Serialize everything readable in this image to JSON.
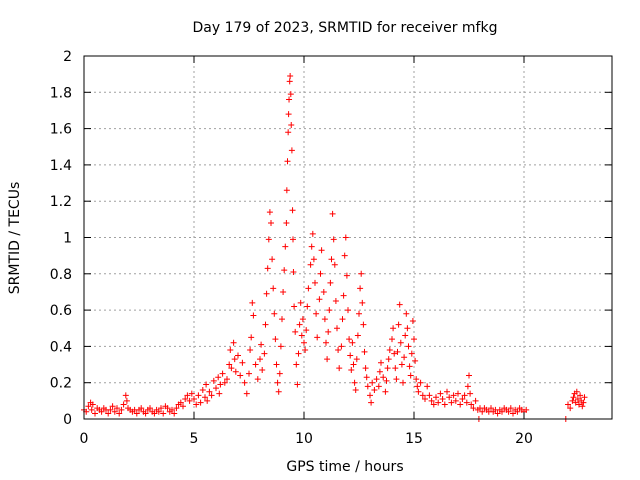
{
  "chart_data": {
    "type": "scatter",
    "title": "Day 179 of 2023, SRMTID for receiver mfkg",
    "xlabel": "GPS time / hours",
    "ylabel": "SRMTID / TECUs",
    "xlim": [
      0,
      24
    ],
    "ylim": [
      0,
      2
    ],
    "xticks": [
      0,
      5,
      10,
      15,
      20
    ],
    "xtick_labels": [
      "0",
      "5",
      "10",
      "15",
      "20"
    ],
    "yticks": [
      0,
      0.2,
      0.4,
      0.6,
      0.8,
      1,
      1.2,
      1.4,
      1.6,
      1.8,
      2
    ],
    "ytick_labels": [
      "0",
      "0.2",
      "0.4",
      "0.6",
      "0.8",
      "1",
      "1.2",
      "1.4",
      "1.6",
      "1.8",
      "2"
    ],
    "grid": true,
    "marker": "+",
    "series": [
      {
        "name": "SRMTID",
        "color": "#ff0000",
        "points": [
          [
            0.0,
            0.05
          ],
          [
            0.1,
            0.04
          ],
          [
            0.2,
            0.07
          ],
          [
            0.3,
            0.09
          ],
          [
            0.35,
            0.05
          ],
          [
            0.4,
            0.08
          ],
          [
            0.5,
            0.03
          ],
          [
            0.6,
            0.06
          ],
          [
            0.7,
            0.05
          ],
          [
            0.8,
            0.04
          ],
          [
            0.9,
            0.06
          ],
          [
            1.0,
            0.05
          ],
          [
            1.1,
            0.03
          ],
          [
            1.2,
            0.05
          ],
          [
            1.3,
            0.07
          ],
          [
            1.4,
            0.04
          ],
          [
            1.5,
            0.06
          ],
          [
            1.6,
            0.03
          ],
          [
            1.7,
            0.05
          ],
          [
            1.8,
            0.08
          ],
          [
            1.9,
            0.13
          ],
          [
            1.95,
            0.1
          ],
          [
            2.0,
            0.06
          ],
          [
            2.1,
            0.05
          ],
          [
            2.2,
            0.04
          ],
          [
            2.3,
            0.05
          ],
          [
            2.4,
            0.03
          ],
          [
            2.5,
            0.05
          ],
          [
            2.6,
            0.06
          ],
          [
            2.7,
            0.04
          ],
          [
            2.8,
            0.03
          ],
          [
            2.9,
            0.05
          ],
          [
            3.0,
            0.06
          ],
          [
            3.1,
            0.04
          ],
          [
            3.2,
            0.03
          ],
          [
            3.3,
            0.05
          ],
          [
            3.4,
            0.04
          ],
          [
            3.5,
            0.06
          ],
          [
            3.6,
            0.03
          ],
          [
            3.7,
            0.07
          ],
          [
            3.8,
            0.06
          ],
          [
            3.9,
            0.04
          ],
          [
            4.0,
            0.05
          ],
          [
            4.1,
            0.03
          ],
          [
            4.2,
            0.06
          ],
          [
            4.3,
            0.08
          ],
          [
            4.4,
            0.09
          ],
          [
            4.5,
            0.07
          ],
          [
            4.6,
            0.11
          ],
          [
            4.7,
            0.13
          ],
          [
            4.8,
            0.1
          ],
          [
            4.9,
            0.14
          ],
          [
            5.0,
            0.11
          ],
          [
            5.1,
            0.08
          ],
          [
            5.2,
            0.13
          ],
          [
            5.3,
            0.09
          ],
          [
            5.4,
            0.16
          ],
          [
            5.5,
            0.12
          ],
          [
            5.55,
            0.19
          ],
          [
            5.6,
            0.1
          ],
          [
            5.7,
            0.15
          ],
          [
            5.8,
            0.13
          ],
          [
            5.9,
            0.21
          ],
          [
            6.0,
            0.17
          ],
          [
            6.1,
            0.23
          ],
          [
            6.15,
            0.14
          ],
          [
            6.2,
            0.19
          ],
          [
            6.3,
            0.25
          ],
          [
            6.4,
            0.2
          ],
          [
            6.5,
            0.22
          ],
          [
            6.6,
            0.3
          ],
          [
            6.65,
            0.38
          ],
          [
            6.7,
            0.28
          ],
          [
            6.8,
            0.42
          ],
          [
            6.85,
            0.33
          ],
          [
            6.9,
            0.26
          ],
          [
            7.0,
            0.35
          ],
          [
            7.1,
            0.24
          ],
          [
            7.2,
            0.31
          ],
          [
            7.3,
            0.2
          ],
          [
            7.4,
            0.14
          ],
          [
            7.5,
            0.25
          ],
          [
            7.55,
            0.38
          ],
          [
            7.6,
            0.45
          ],
          [
            7.65,
            0.64
          ],
          [
            7.7,
            0.57
          ],
          [
            7.8,
            0.3
          ],
          [
            7.9,
            0.22
          ],
          [
            8.0,
            0.33
          ],
          [
            8.05,
            0.41
          ],
          [
            8.1,
            0.27
          ],
          [
            8.2,
            0.36
          ],
          [
            8.25,
            0.52
          ],
          [
            8.3,
            0.69
          ],
          [
            8.35,
            0.83
          ],
          [
            8.4,
            0.99
          ],
          [
            8.45,
            1.14
          ],
          [
            8.5,
            1.08
          ],
          [
            8.55,
            0.88
          ],
          [
            8.6,
            0.72
          ],
          [
            8.65,
            0.58
          ],
          [
            8.7,
            0.44
          ],
          [
            8.75,
            0.3
          ],
          [
            8.8,
            0.2
          ],
          [
            8.85,
            0.15
          ],
          [
            8.9,
            0.25
          ],
          [
            8.95,
            0.4
          ],
          [
            9.0,
            0.55
          ],
          [
            9.05,
            0.7
          ],
          [
            9.1,
            0.82
          ],
          [
            9.15,
            0.95
          ],
          [
            9.2,
            1.08
          ],
          [
            9.22,
            1.26
          ],
          [
            9.25,
            1.42
          ],
          [
            9.28,
            1.58
          ],
          [
            9.3,
            1.68
          ],
          [
            9.32,
            1.76
          ],
          [
            9.35,
            1.86
          ],
          [
            9.37,
            1.89
          ],
          [
            9.4,
            1.79
          ],
          [
            9.42,
            1.62
          ],
          [
            9.45,
            1.48
          ],
          [
            9.48,
            1.15
          ],
          [
            9.5,
            0.99
          ],
          [
            9.52,
            0.81
          ],
          [
            9.55,
            0.62
          ],
          [
            9.6,
            0.48
          ],
          [
            9.65,
            0.3
          ],
          [
            9.7,
            0.19
          ],
          [
            9.75,
            0.36
          ],
          [
            9.8,
            0.52
          ],
          [
            9.85,
            0.64
          ],
          [
            9.9,
            0.46
          ],
          [
            9.95,
            0.55
          ],
          [
            10.0,
            0.42
          ],
          [
            10.05,
            0.38
          ],
          [
            10.1,
            0.49
          ],
          [
            10.15,
            0.62
          ],
          [
            10.2,
            0.72
          ],
          [
            10.3,
            0.85
          ],
          [
            10.35,
            0.95
          ],
          [
            10.4,
            1.02
          ],
          [
            10.45,
            0.88
          ],
          [
            10.5,
            0.75
          ],
          [
            10.55,
            0.58
          ],
          [
            10.6,
            0.45
          ],
          [
            10.7,
            0.66
          ],
          [
            10.75,
            0.8
          ],
          [
            10.8,
            0.93
          ],
          [
            10.9,
            0.7
          ],
          [
            10.95,
            0.55
          ],
          [
            11.0,
            0.42
          ],
          [
            11.05,
            0.33
          ],
          [
            11.1,
            0.48
          ],
          [
            11.15,
            0.6
          ],
          [
            11.2,
            0.75
          ],
          [
            11.25,
            0.88
          ],
          [
            11.3,
            1.13
          ],
          [
            11.35,
            0.99
          ],
          [
            11.4,
            0.85
          ],
          [
            11.45,
            0.65
          ],
          [
            11.5,
            0.5
          ],
          [
            11.55,
            0.38
          ],
          [
            11.6,
            0.28
          ],
          [
            11.7,
            0.4
          ],
          [
            11.75,
            0.55
          ],
          [
            11.8,
            0.68
          ],
          [
            11.85,
            0.9
          ],
          [
            11.9,
            1.0
          ],
          [
            11.95,
            0.79
          ],
          [
            12.0,
            0.6
          ],
          [
            12.05,
            0.44
          ],
          [
            12.1,
            0.35
          ],
          [
            12.15,
            0.27
          ],
          [
            12.2,
            0.42
          ],
          [
            12.25,
            0.3
          ],
          [
            12.3,
            0.2
          ],
          [
            12.35,
            0.16
          ],
          [
            12.4,
            0.33
          ],
          [
            12.45,
            0.46
          ],
          [
            12.5,
            0.58
          ],
          [
            12.55,
            0.72
          ],
          [
            12.6,
            0.8
          ],
          [
            12.65,
            0.64
          ],
          [
            12.7,
            0.52
          ],
          [
            12.75,
            0.37
          ],
          [
            12.8,
            0.28
          ],
          [
            12.85,
            0.23
          ],
          [
            12.9,
            0.18
          ],
          [
            13.0,
            0.13
          ],
          [
            13.05,
            0.09
          ],
          [
            13.1,
            0.2
          ],
          [
            13.2,
            0.16
          ],
          [
            13.3,
            0.22
          ],
          [
            13.4,
            0.18
          ],
          [
            13.45,
            0.26
          ],
          [
            13.5,
            0.31
          ],
          [
            13.6,
            0.23
          ],
          [
            13.7,
            0.15
          ],
          [
            13.75,
            0.21
          ],
          [
            13.8,
            0.28
          ],
          [
            13.85,
            0.33
          ],
          [
            13.9,
            0.38
          ],
          [
            14.0,
            0.44
          ],
          [
            14.05,
            0.5
          ],
          [
            14.1,
            0.36
          ],
          [
            14.15,
            0.28
          ],
          [
            14.2,
            0.22
          ],
          [
            14.25,
            0.37
          ],
          [
            14.3,
            0.52
          ],
          [
            14.35,
            0.63
          ],
          [
            14.4,
            0.42
          ],
          [
            14.45,
            0.3
          ],
          [
            14.5,
            0.2
          ],
          [
            14.55,
            0.34
          ],
          [
            14.6,
            0.46
          ],
          [
            14.65,
            0.58
          ],
          [
            14.7,
            0.5
          ],
          [
            14.75,
            0.4
          ],
          [
            14.8,
            0.29
          ],
          [
            14.85,
            0.24
          ],
          [
            14.9,
            0.36
          ],
          [
            14.95,
            0.54
          ],
          [
            15.0,
            0.44
          ],
          [
            15.05,
            0.32
          ],
          [
            15.1,
            0.22
          ],
          [
            15.15,
            0.18
          ],
          [
            15.2,
            0.15
          ],
          [
            15.3,
            0.2
          ],
          [
            15.4,
            0.13
          ],
          [
            15.5,
            0.11
          ],
          [
            15.6,
            0.18
          ],
          [
            15.7,
            0.13
          ],
          [
            15.8,
            0.1
          ],
          [
            15.9,
            0.08
          ],
          [
            16.0,
            0.12
          ],
          [
            16.1,
            0.09
          ],
          [
            16.2,
            0.14
          ],
          [
            16.3,
            0.11
          ],
          [
            16.4,
            0.08
          ],
          [
            16.5,
            0.15
          ],
          [
            16.6,
            0.12
          ],
          [
            16.7,
            0.09
          ],
          [
            16.8,
            0.13
          ],
          [
            16.9,
            0.1
          ],
          [
            17.0,
            0.14
          ],
          [
            17.1,
            0.08
          ],
          [
            17.2,
            0.11
          ],
          [
            17.3,
            0.13
          ],
          [
            17.4,
            0.09
          ],
          [
            17.45,
            0.18
          ],
          [
            17.5,
            0.24
          ],
          [
            17.55,
            0.14
          ],
          [
            17.6,
            0.08
          ],
          [
            17.7,
            0.06
          ],
          [
            17.8,
            0.1
          ],
          [
            17.9,
            0.05
          ],
          [
            17.95,
            0.0
          ],
          [
            18.0,
            0.06
          ],
          [
            18.1,
            0.04
          ],
          [
            18.2,
            0.06
          ],
          [
            18.3,
            0.05
          ],
          [
            18.4,
            0.04
          ],
          [
            18.5,
            0.06
          ],
          [
            18.6,
            0.04
          ],
          [
            18.7,
            0.05
          ],
          [
            18.8,
            0.03
          ],
          [
            18.9,
            0.05
          ],
          [
            19.0,
            0.04
          ],
          [
            19.1,
            0.06
          ],
          [
            19.2,
            0.05
          ],
          [
            19.3,
            0.04
          ],
          [
            19.4,
            0.06
          ],
          [
            19.5,
            0.03
          ],
          [
            19.6,
            0.05
          ],
          [
            19.7,
            0.04
          ],
          [
            19.8,
            0.06
          ],
          [
            19.9,
            0.05
          ],
          [
            20.0,
            0.04
          ],
          [
            20.1,
            0.05
          ],
          [
            21.9,
            0.0
          ],
          [
            22.0,
            0.08
          ],
          [
            22.1,
            0.06
          ],
          [
            22.2,
            0.1
          ],
          [
            22.25,
            0.12
          ],
          [
            22.3,
            0.14
          ],
          [
            22.35,
            0.09
          ],
          [
            22.4,
            0.15
          ],
          [
            22.45,
            0.11
          ],
          [
            22.5,
            0.08
          ],
          [
            22.55,
            0.13
          ],
          [
            22.6,
            0.1
          ],
          [
            22.65,
            0.07
          ],
          [
            22.7,
            0.09
          ],
          [
            22.75,
            0.12
          ]
        ]
      }
    ]
  }
}
